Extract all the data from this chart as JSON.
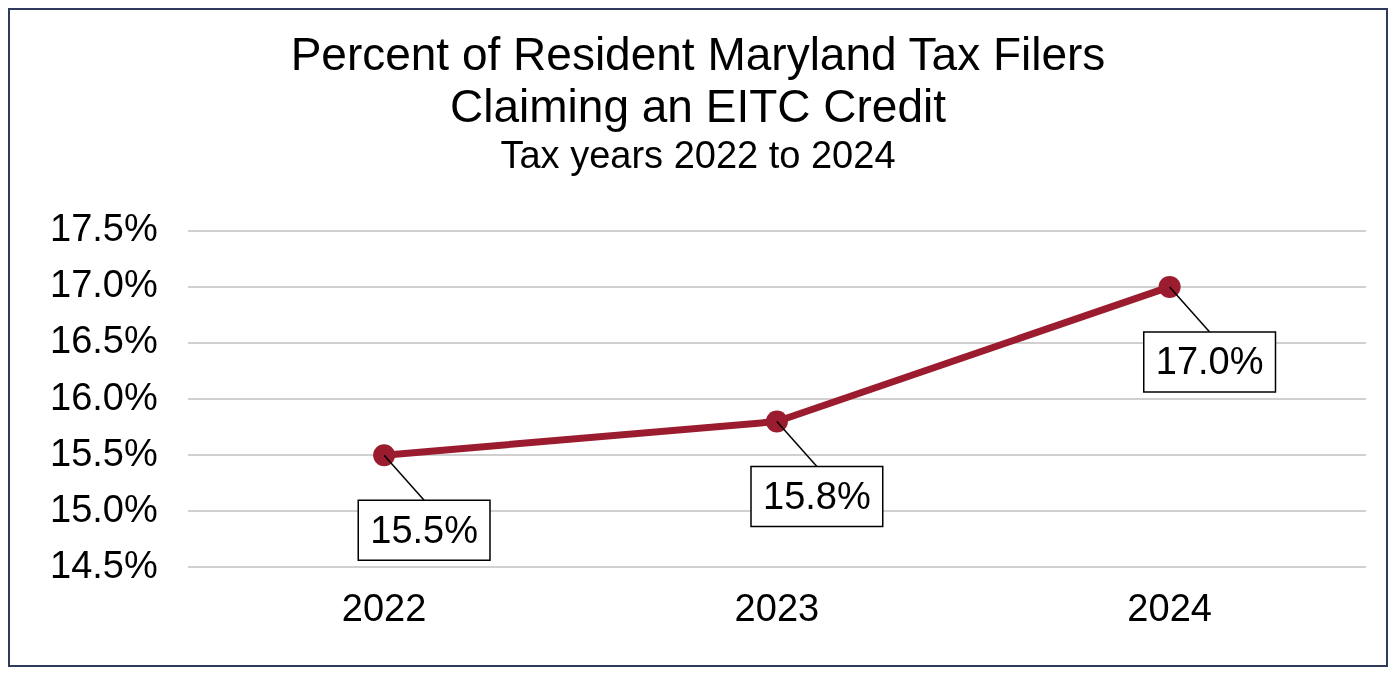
{
  "chart_data": {
    "type": "line",
    "title": "Percent of Resident Maryland Tax Filers Claiming an EITC Credit",
    "subtitle": "Tax years 2022 to 2024",
    "categories": [
      "2022",
      "2023",
      "2024"
    ],
    "series": [
      {
        "color": "#9b1c2e",
        "values": [
          15.5,
          15.8,
          17.0
        ],
        "value_labels": [
          "15.5%",
          "15.8%",
          "17.0%"
        ]
      }
    ],
    "ylim": [
      14.5,
      17.5
    ],
    "yticks": [
      {
        "value": 14.5,
        "label": "14.5%"
      },
      {
        "value": 15.0,
        "label": "15.0%"
      },
      {
        "value": 15.5,
        "label": "15.5%"
      },
      {
        "value": 16.0,
        "label": "16.0%"
      },
      {
        "value": 16.5,
        "label": "16.5%"
      },
      {
        "value": 17.0,
        "label": "17.0%"
      },
      {
        "value": 17.5,
        "label": "17.5%"
      }
    ],
    "grid": "y",
    "legend": false,
    "marker": "circle",
    "line_style": "solid"
  }
}
